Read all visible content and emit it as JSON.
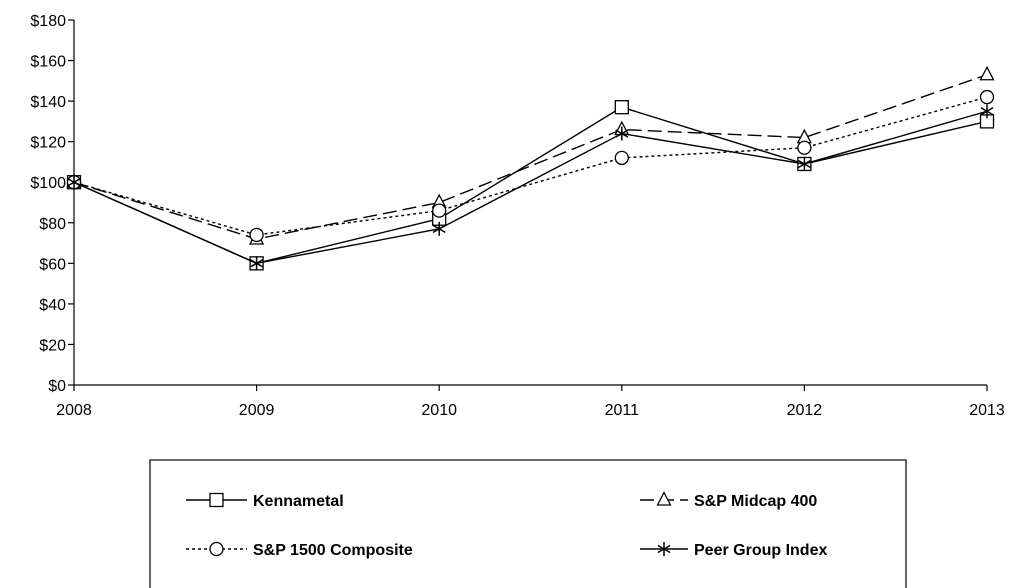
{
  "chart_data": {
    "type": "line",
    "title": "",
    "xlabel": "",
    "ylabel": "",
    "x": [
      "2008",
      "2009",
      "2010",
      "2011",
      "2012",
      "2013"
    ],
    "ylim": [
      0,
      180
    ],
    "yticks": [
      "$0",
      "$20",
      "$40",
      "$60",
      "$80",
      "$100",
      "$120",
      "$140",
      "$160",
      "$180"
    ],
    "grid": false,
    "legend_position": "bottom",
    "series": [
      {
        "name": "Kennametal",
        "values": [
          100,
          60,
          82,
          137,
          109,
          130
        ],
        "dash": "solid",
        "marker": "square"
      },
      {
        "name": "S&P Midcap 400",
        "values": [
          100,
          72,
          90,
          126,
          122,
          153
        ],
        "dash": "dashed",
        "marker": "triangle"
      },
      {
        "name": "S&P 1500 Composite",
        "values": [
          100,
          74,
          86,
          112,
          117,
          142
        ],
        "dash": "dotted",
        "marker": "circle"
      },
      {
        "name": "Peer Group Index",
        "values": [
          100,
          60,
          77,
          124,
          109,
          135
        ],
        "dash": "solid",
        "marker": "asterisk"
      }
    ]
  }
}
